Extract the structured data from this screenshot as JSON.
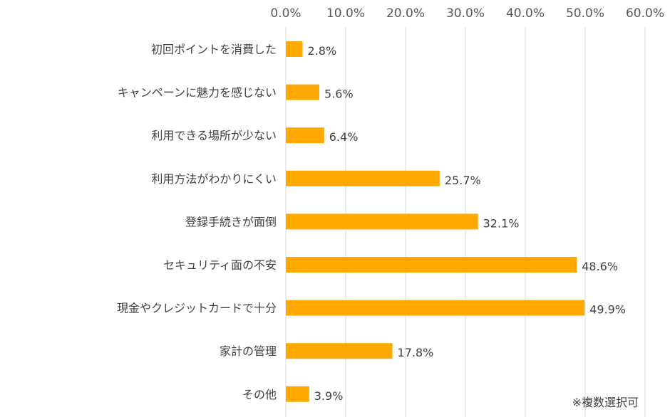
{
  "chart_data": {
    "type": "bar",
    "orientation": "horizontal",
    "title": "",
    "xlabel": "",
    "ylabel": "",
    "xlim": [
      0,
      60
    ],
    "ticks": [
      "0.0%",
      "10.0%",
      "20.0%",
      "30.0%",
      "40.0%",
      "50.0%",
      "60.0%"
    ],
    "tick_values": [
      0,
      10,
      20,
      30,
      40,
      50,
      60
    ],
    "axis_position": "top",
    "grid": true,
    "categories": [
      "初回ポイントを消費した",
      "キャンペーンに魅力を感じない",
      "利用できる場所が少ない",
      "利用方法がわかりにくい",
      "登録手続きが面倒",
      "セキュリティ面の不安",
      "現金やクレジットカードで十分",
      "家計の管理",
      "その他"
    ],
    "values": [
      2.8,
      5.6,
      6.4,
      25.7,
      32.1,
      48.6,
      49.9,
      17.8,
      3.9
    ],
    "value_labels": [
      "2.8%",
      "5.6%",
      "6.4%",
      "25.7%",
      "32.1%",
      "48.6%",
      "49.9%",
      "17.8%",
      "3.9%"
    ],
    "bar_color": "#FFA800",
    "annotation": "※複数選択可"
  }
}
